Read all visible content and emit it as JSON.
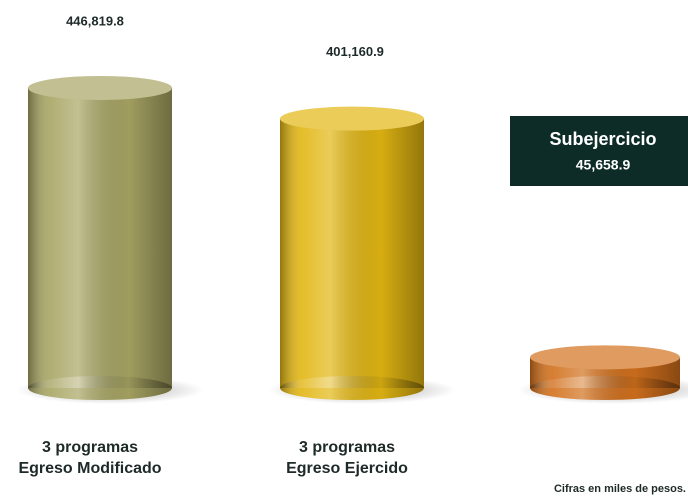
{
  "chart_data": {
    "type": "cylinder-bar",
    "categories": [
      [
        "3 programas",
        "Egreso Modificado"
      ],
      [
        "3 programas",
        "Egreso Ejercido"
      ],
      [
        "Subejercicio"
      ]
    ],
    "values": [
      446819.8,
      401160.9,
      45658.9
    ],
    "value_labels": [
      "446,819.8",
      "401,160.9",
      "45,658.9"
    ],
    "colors": [
      "#a8a563",
      "#e2b612",
      "#d2701c"
    ],
    "note": "Cifras en miles de pesos."
  }
}
